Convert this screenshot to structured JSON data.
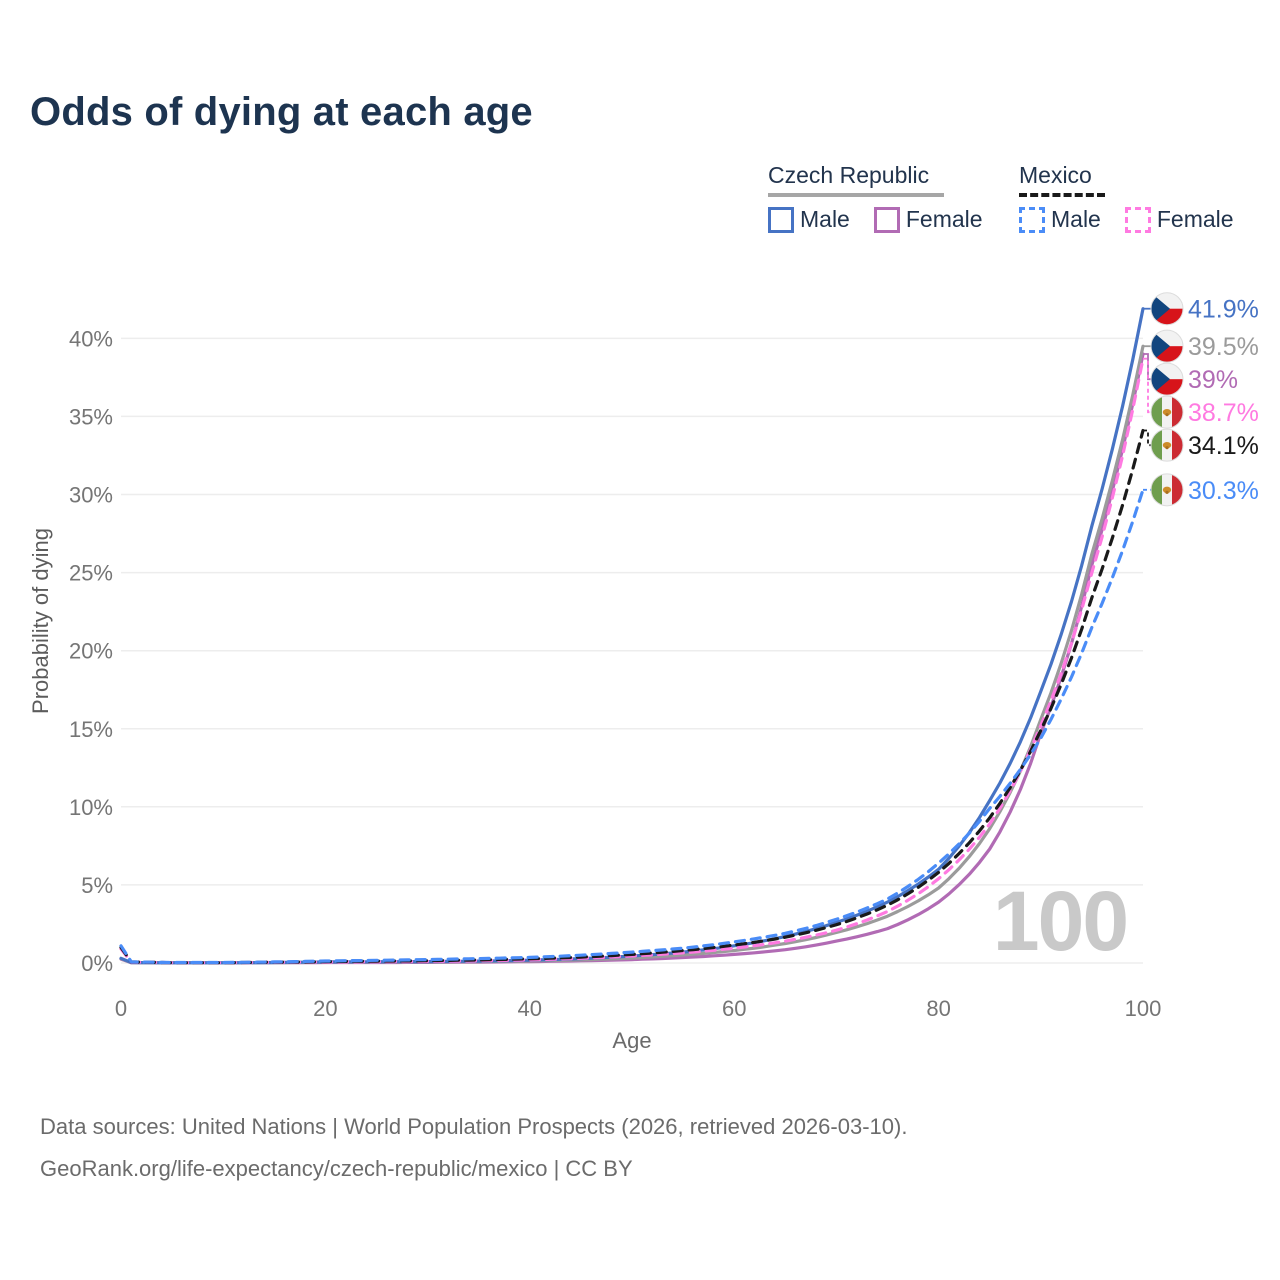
{
  "title": "Odds of dying at each age",
  "legend": {
    "groups": [
      {
        "name": "Czech Republic",
        "line_style": "solid",
        "underline_color": "#a6a6a6",
        "items": [
          {
            "label": "Male",
            "color": "#4673c4"
          },
          {
            "label": "Female",
            "color": "#b16bb4"
          }
        ]
      },
      {
        "name": "Mexico",
        "line_style": "dashed",
        "underline_color": "#1a1a1a",
        "items": [
          {
            "label": "Male",
            "color": "#4a8cf7"
          },
          {
            "label": "Female",
            "color": "#ff7ae1"
          }
        ]
      }
    ]
  },
  "watermark": "100",
  "footer": {
    "line1": "Data sources: United Nations | World Population Prospects (2026, retrieved 2026-03-10).",
    "line2": "GeoRank.org/life-expectancy/czech-republic/mexico | CC BY"
  },
  "chart_data": {
    "type": "line",
    "title": "Odds of dying at each age",
    "xlabel": "Age",
    "ylabel": "Probability of dying",
    "xlim": [
      0,
      100
    ],
    "ylim": [
      0,
      43
    ],
    "xticks": [
      0,
      20,
      40,
      60,
      80,
      100
    ],
    "yticks": [
      0,
      5,
      10,
      15,
      20,
      25,
      30,
      35,
      40
    ],
    "ytick_suffix": "%",
    "grid": true,
    "legend_position": "top-right",
    "x": [
      0,
      1,
      5,
      10,
      15,
      20,
      25,
      30,
      35,
      40,
      45,
      50,
      55,
      60,
      65,
      70,
      75,
      80,
      85,
      90,
      95,
      100
    ],
    "series": [
      {
        "name": "Czech Republic Female",
        "country": "cz",
        "sex": "female",
        "color": "#b16bb4",
        "dash": "solid",
        "end_label": "39%",
        "values": [
          0.25,
          0.02,
          0.01,
          0.01,
          0.02,
          0.03,
          0.03,
          0.04,
          0.06,
          0.09,
          0.14,
          0.22,
          0.35,
          0.55,
          0.85,
          1.4,
          2.2,
          3.9,
          7.3,
          14.7,
          25.5,
          39.0
        ]
      },
      {
        "name": "Czech Republic Both",
        "country": "cz",
        "sex": "both",
        "color": "#9b9b9b",
        "dash": "solid",
        "end_label": "39.5%",
        "values": [
          0.28,
          0.02,
          0.01,
          0.01,
          0.02,
          0.05,
          0.06,
          0.07,
          0.09,
          0.13,
          0.2,
          0.32,
          0.52,
          0.8,
          1.25,
          1.95,
          3.0,
          4.8,
          8.6,
          15.6,
          26.2,
          39.5
        ]
      },
      {
        "name": "Czech Republic Male",
        "country": "cz",
        "sex": "male",
        "color": "#4673c4",
        "dash": "solid",
        "end_label": "41.9%",
        "values": [
          0.3,
          0.03,
          0.01,
          0.01,
          0.03,
          0.07,
          0.08,
          0.09,
          0.12,
          0.18,
          0.28,
          0.45,
          0.7,
          1.1,
          1.7,
          2.6,
          3.9,
          6.0,
          10.4,
          17.4,
          28.0,
          41.9
        ]
      },
      {
        "name": "Mexico Female",
        "country": "mx",
        "sex": "female",
        "color": "#ff7ae1",
        "dash": "dashed",
        "end_label": "38.7%",
        "values": [
          0.9,
          0.06,
          0.02,
          0.02,
          0.04,
          0.06,
          0.08,
          0.1,
          0.14,
          0.2,
          0.3,
          0.45,
          0.65,
          0.95,
          1.4,
          2.1,
          3.3,
          5.4,
          8.9,
          15.2,
          25.0,
          38.7
        ]
      },
      {
        "name": "Mexico Both",
        "country": "mx",
        "sex": "both",
        "color": "#1a1a1a",
        "dash": "dashed",
        "end_label": "34.1%",
        "values": [
          1.0,
          0.07,
          0.02,
          0.02,
          0.05,
          0.09,
          0.12,
          0.15,
          0.2,
          0.27,
          0.38,
          0.55,
          0.8,
          1.15,
          1.65,
          2.45,
          3.7,
          5.8,
          9.3,
          14.9,
          23.4,
          34.1
        ]
      },
      {
        "name": "Mexico Male",
        "country": "mx",
        "sex": "male",
        "color": "#4a8cf7",
        "dash": "dashed",
        "end_label": "30.3%",
        "values": [
          1.1,
          0.08,
          0.03,
          0.03,
          0.07,
          0.13,
          0.17,
          0.22,
          0.28,
          0.36,
          0.5,
          0.7,
          0.95,
          1.35,
          1.9,
          2.8,
          4.1,
          6.4,
          9.9,
          14.4,
          21.5,
          30.3
        ]
      }
    ],
    "flag_colors": {
      "cz": {
        "white": "#f2f2f2",
        "red": "#d7141a",
        "blue": "#11457e"
      },
      "mx": {
        "green": "#6f9e4e",
        "white": "#f2f2f2",
        "red": "#cc2b33",
        "emblem": "#cd8c2a"
      }
    }
  }
}
